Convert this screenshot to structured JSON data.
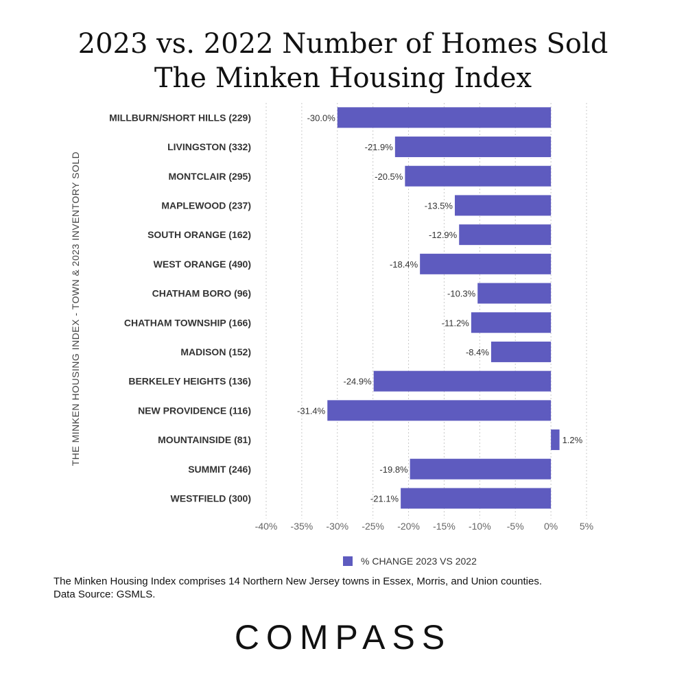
{
  "title_line_1": "2023 vs. 2022 Number of Homes Sold",
  "title_line_2": "The Minken Housing Index",
  "footnote_line_1": "The Minken Housing Index comprises 14 Northern New Jersey towns in Essex, Morris, and Union counties.",
  "footnote_line_2": "Data Source: GSMLS.",
  "brand": "COMPASS",
  "colors": {
    "bar": "#5e5bbf",
    "grid": "#c8c8c8"
  },
  "chart_data": {
    "type": "bar",
    "orientation": "horizontal",
    "ylabel": "THE MINKEN HOUSING INDEX - TOWN & 2023 INVENTORY SOLD",
    "xlabel": "",
    "xlim": [
      -40,
      5
    ],
    "xticks": [
      -40,
      -35,
      -30,
      -25,
      -20,
      -15,
      -10,
      -5,
      0,
      5
    ],
    "xtick_labels": [
      "-40%",
      "-35%",
      "-30%",
      "-25%",
      "-20%",
      "-15%",
      "-10%",
      "-5%",
      "0%",
      "5%"
    ],
    "grid": "vertical-dotted",
    "legend_position": "bottom",
    "categories": [
      "MILLBURN/SHORT HILLS  (229)",
      "LIVINGSTON (332)",
      "MONTCLAIR (295)",
      "MAPLEWOOD (237)",
      "SOUTH ORANGE (162)",
      "WEST ORANGE (490)",
      "CHATHAM BORO (96)",
      "CHATHAM TOWNSHIP (166)",
      "MADISON (152)",
      "BERKELEY HEIGHTS (136)",
      "NEW PROVIDENCE (116)",
      "MOUNTAINSIDE (81)",
      "SUMMIT (246)",
      "WESTFIELD (300)"
    ],
    "series": [
      {
        "name": "% CHANGE 2023 VS 2022",
        "values": [
          -30.0,
          -21.9,
          -20.5,
          -13.5,
          -12.9,
          -18.4,
          -10.3,
          -11.2,
          -8.4,
          -24.9,
          -31.4,
          1.2,
          -19.8,
          -21.1
        ],
        "labels": [
          "-30.0%",
          "-21.9%",
          "-20.5%",
          "-13.5%",
          "-12.9%",
          "-18.4%",
          "-10.3%",
          "-11.2%",
          "-8.4%",
          "-24.9%",
          "-31.4%",
          "1.2%",
          "-19.8%",
          "-21.1%"
        ]
      }
    ]
  }
}
